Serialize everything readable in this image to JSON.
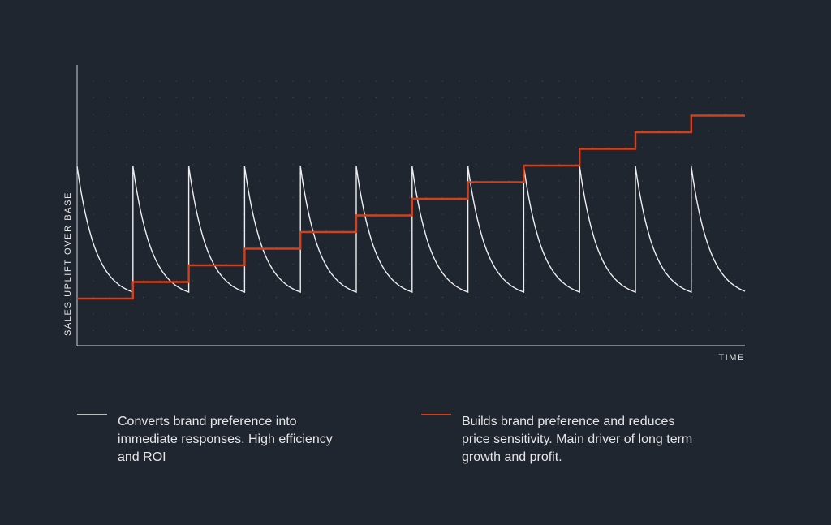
{
  "y_axis_label": "SALES UPLIFT OVER BASE",
  "x_axis_label": "TIME",
  "legend": [
    {
      "lines": [
        "Converts brand preference into",
        "immediate responses. High efficiency",
        "and ROI"
      ]
    },
    {
      "lines": [
        "Builds brand preference and reduces",
        "price sensitivity. Main driver of long term",
        "growth and profit."
      ]
    }
  ]
}
